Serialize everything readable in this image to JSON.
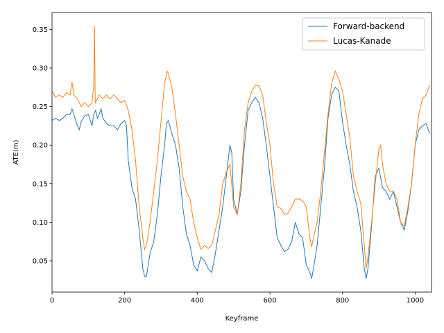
{
  "chart_data": {
    "type": "line",
    "x_label": "Keyframe",
    "y_label": "ATE(m)",
    "xlim": [
      0,
      1045
    ],
    "ylim": [
      0.0095,
      0.372
    ],
    "xticks": [
      0,
      200,
      400,
      600,
      800,
      1000
    ],
    "yticks": [
      0.05,
      {
        "value": 0.1,
        "label": "0.10"
      },
      0.15,
      {
        "value": 0.2,
        "label": "0.20"
      },
      0.25,
      {
        "value": 0.3,
        "label": "0.30"
      },
      0.35
    ],
    "legend": "upper right",
    "series": [
      {
        "name": "Forward-backend",
        "color": "#1f77b4",
        "x": [
          0,
          10,
          20,
          30,
          40,
          50,
          55,
          60,
          70,
          75,
          80,
          90,
          100,
          110,
          115,
          120,
          125,
          130,
          135,
          140,
          150,
          160,
          170,
          180,
          190,
          200,
          205,
          210,
          220,
          230,
          240,
          250,
          255,
          260,
          270,
          280,
          290,
          300,
          310,
          315,
          320,
          330,
          340,
          350,
          360,
          370,
          380,
          390,
          400,
          410,
          420,
          430,
          440,
          450,
          460,
          470,
          480,
          490,
          495,
          500,
          510,
          520,
          530,
          540,
          550,
          560,
          570,
          580,
          590,
          600,
          610,
          620,
          630,
          640,
          650,
          660,
          670,
          680,
          690,
          700,
          710,
          715,
          720,
          730,
          740,
          750,
          760,
          770,
          780,
          790,
          800,
          810,
          820,
          830,
          840,
          850,
          860,
          865,
          870,
          880,
          890,
          900,
          910,
          920,
          930,
          940,
          950,
          960,
          970,
          980,
          990,
          1000,
          1010,
          1020,
          1030,
          1040
        ],
        "values": [
          0.232,
          0.235,
          0.232,
          0.235,
          0.24,
          0.24,
          0.247,
          0.24,
          0.225,
          0.22,
          0.23,
          0.238,
          0.24,
          0.225,
          0.24,
          0.245,
          0.235,
          0.24,
          0.247,
          0.235,
          0.228,
          0.225,
          0.225,
          0.22,
          0.228,
          0.232,
          0.225,
          0.18,
          0.145,
          0.13,
          0.09,
          0.04,
          0.03,
          0.03,
          0.06,
          0.075,
          0.11,
          0.16,
          0.2,
          0.228,
          0.232,
          0.215,
          0.2,
          0.17,
          0.12,
          0.085,
          0.07,
          0.045,
          0.037,
          0.055,
          0.05,
          0.04,
          0.035,
          0.06,
          0.09,
          0.12,
          0.16,
          0.2,
          0.19,
          0.13,
          0.11,
          0.14,
          0.2,
          0.245,
          0.255,
          0.262,
          0.255,
          0.235,
          0.2,
          0.16,
          0.12,
          0.08,
          0.07,
          0.062,
          0.065,
          0.075,
          0.1,
          0.085,
          0.08,
          0.045,
          0.035,
          0.027,
          0.04,
          0.07,
          0.12,
          0.17,
          0.235,
          0.265,
          0.275,
          0.27,
          0.23,
          0.2,
          0.175,
          0.14,
          0.12,
          0.09,
          0.04,
          0.027,
          0.04,
          0.095,
          0.16,
          0.17,
          0.145,
          0.14,
          0.13,
          0.14,
          0.12,
          0.1,
          0.09,
          0.115,
          0.15,
          0.2,
          0.22,
          0.225,
          0.228,
          0.215
        ]
      },
      {
        "name": "Lucas-Kanade",
        "color": "#ff7f0e",
        "x": [
          0,
          10,
          20,
          30,
          40,
          50,
          55,
          60,
          70,
          80,
          90,
          100,
          110,
          115,
          117,
          119,
          125,
          130,
          140,
          150,
          160,
          170,
          180,
          190,
          200,
          210,
          220,
          230,
          240,
          250,
          255,
          260,
          270,
          280,
          290,
          300,
          310,
          317,
          320,
          330,
          340,
          350,
          360,
          370,
          380,
          390,
          400,
          410,
          420,
          430,
          440,
          450,
          460,
          470,
          480,
          490,
          500,
          510,
          520,
          530,
          540,
          550,
          560,
          570,
          580,
          590,
          600,
          610,
          620,
          630,
          640,
          650,
          660,
          670,
          680,
          690,
          700,
          710,
          715,
          720,
          730,
          740,
          750,
          760,
          770,
          780,
          790,
          800,
          810,
          820,
          830,
          840,
          850,
          860,
          865,
          870,
          880,
          890,
          900,
          905,
          910,
          920,
          930,
          940,
          950,
          960,
          970,
          980,
          990,
          1000,
          1010,
          1020,
          1030,
          1040
        ],
        "values": [
          0.27,
          0.262,
          0.265,
          0.262,
          0.268,
          0.265,
          0.282,
          0.265,
          0.26,
          0.25,
          0.255,
          0.25,
          0.255,
          0.278,
          0.354,
          0.255,
          0.26,
          0.265,
          0.26,
          0.265,
          0.26,
          0.265,
          0.26,
          0.255,
          0.258,
          0.245,
          0.22,
          0.18,
          0.12,
          0.08,
          0.065,
          0.07,
          0.1,
          0.14,
          0.18,
          0.23,
          0.28,
          0.296,
          0.293,
          0.275,
          0.24,
          0.2,
          0.16,
          0.14,
          0.13,
          0.1,
          0.08,
          0.065,
          0.07,
          0.066,
          0.07,
          0.09,
          0.11,
          0.15,
          0.165,
          0.175,
          0.12,
          0.11,
          0.15,
          0.22,
          0.255,
          0.27,
          0.278,
          0.277,
          0.265,
          0.23,
          0.2,
          0.15,
          0.12,
          0.118,
          0.11,
          0.112,
          0.12,
          0.13,
          0.13,
          0.128,
          0.12,
          0.08,
          0.068,
          0.08,
          0.1,
          0.14,
          0.19,
          0.24,
          0.28,
          0.296,
          0.285,
          0.27,
          0.24,
          0.21,
          0.16,
          0.14,
          0.125,
          0.07,
          0.04,
          0.055,
          0.1,
          0.15,
          0.195,
          0.2,
          0.175,
          0.15,
          0.14,
          0.14,
          0.13,
          0.1,
          0.095,
          0.12,
          0.15,
          0.2,
          0.24,
          0.26,
          0.265,
          0.278
        ]
      }
    ]
  }
}
